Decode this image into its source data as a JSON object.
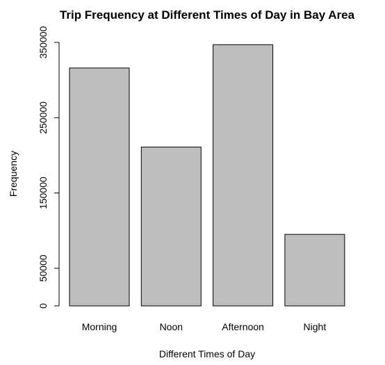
{
  "chart_data": {
    "type": "bar",
    "title": "Trip Frequency at Different Times of Day in Bay Area",
    "xlabel": "Different Times of Day",
    "ylabel": "Frequency",
    "categories": [
      "Morning",
      "Noon",
      "Afternoon",
      "Night"
    ],
    "values": [
      316000,
      211000,
      347000,
      95000
    ],
    "ylim": [
      0,
      350000
    ],
    "y_ticks": [
      0,
      50000,
      150000,
      250000,
      350000
    ],
    "y_tick_labels": [
      "0",
      "50000",
      "150000",
      "250000",
      "350000"
    ],
    "grid": false,
    "legend": "none",
    "colors": {
      "bar_fill": "#bebebe",
      "bar_stroke": "#000000",
      "background": "#ffffff"
    }
  }
}
